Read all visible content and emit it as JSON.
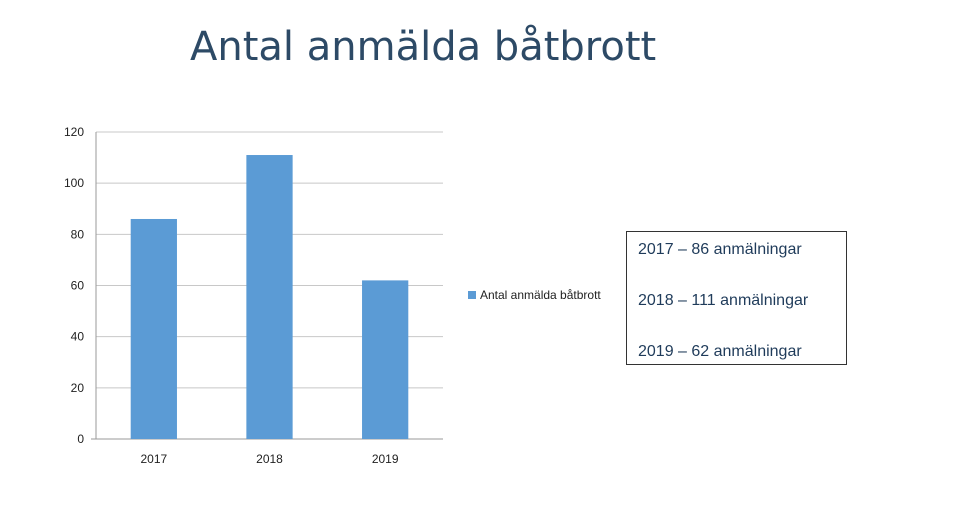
{
  "slide": {
    "title": "Antal anmälda båtbrott"
  },
  "chart_data": {
    "type": "bar",
    "title": "Antal anmälda båtbrott",
    "xlabel": "",
    "ylabel": "",
    "categories": [
      "2017",
      "2018",
      "2019"
    ],
    "series": [
      {
        "name": "Antal anmälda båtbrott",
        "values": [
          86,
          111,
          62
        ]
      }
    ],
    "ylim": [
      0,
      120
    ],
    "yticks": [
      0,
      20,
      40,
      60,
      80,
      100,
      120
    ],
    "grid": true,
    "legend_position": "right",
    "color": "#5b9bd5"
  },
  "info_box": {
    "lines": [
      "2017 – 86 anmälningar",
      "2018 – 111 anmälningar",
      "2019 – 62 anmälningar"
    ]
  }
}
